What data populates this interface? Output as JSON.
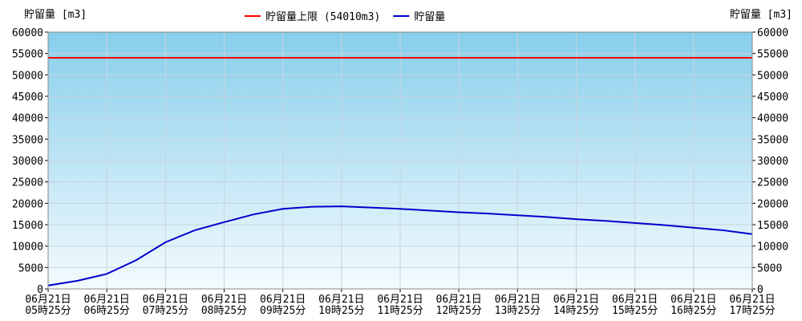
{
  "chart_data": {
    "type": "line",
    "ylabel": "貯留量 [m3]",
    "y2label": "貯留量 [m3]",
    "reference_line": {
      "name": "貯留量上限 (54010m3)",
      "value": 54010,
      "color": "#ff0000"
    },
    "x": [
      0,
      0.5,
      1,
      1.5,
      2,
      2.5,
      3,
      3.5,
      4,
      4.5,
      5,
      5.5,
      6,
      6.5,
      7,
      7.5,
      8,
      8.5,
      9,
      9.5,
      10,
      10.5,
      11,
      11.5,
      12
    ],
    "series": [
      {
        "name": "貯留量",
        "color": "#0000cc",
        "values": [
          800,
          1900,
          3500,
          6700,
          10900,
          13700,
          15600,
          17400,
          18700,
          19200,
          19300,
          19000,
          18700,
          18300,
          17900,
          17600,
          17200,
          16800,
          16300,
          15900,
          15400,
          14900,
          14300,
          13700,
          12800
        ]
      }
    ],
    "xlim": [
      0,
      12
    ],
    "xticks": [
      {
        "value": 0,
        "label": [
          "06月21日",
          "05時25分"
        ]
      },
      {
        "value": 1,
        "label": [
          "06月21日",
          "06時25分"
        ]
      },
      {
        "value": 2,
        "label": [
          "06月21日",
          "07時25分"
        ]
      },
      {
        "value": 3,
        "label": [
          "06月21日",
          "08時25分"
        ]
      },
      {
        "value": 4,
        "label": [
          "06月21日",
          "09時25分"
        ]
      },
      {
        "value": 5,
        "label": [
          "06月21日",
          "10時25分"
        ]
      },
      {
        "value": 6,
        "label": [
          "06月21日",
          "11時25分"
        ]
      },
      {
        "value": 7,
        "label": [
          "06月21日",
          "12時25分"
        ]
      },
      {
        "value": 8,
        "label": [
          "06月21日",
          "13時25分"
        ]
      },
      {
        "value": 9,
        "label": [
          "06月21日",
          "14時25分"
        ]
      },
      {
        "value": 10,
        "label": [
          "06月21日",
          "15時25分"
        ]
      },
      {
        "value": 11,
        "label": [
          "06月21日",
          "16時25分"
        ]
      },
      {
        "value": 12,
        "label": [
          "06月21日",
          "17時25分"
        ]
      }
    ],
    "ylim": [
      0,
      60000
    ],
    "yticks": [
      0,
      5000,
      10000,
      15000,
      20000,
      25000,
      30000,
      35000,
      40000,
      45000,
      50000,
      55000,
      60000
    ],
    "grid": true
  }
}
